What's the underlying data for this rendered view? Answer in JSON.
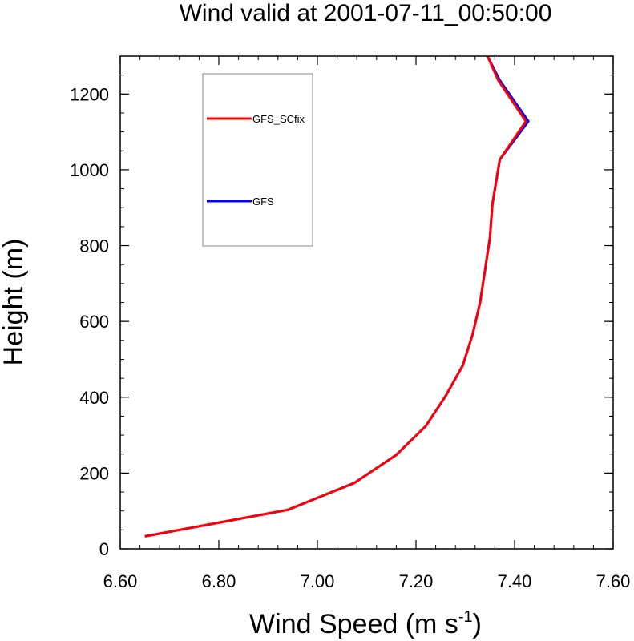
{
  "chart_data": {
    "type": "line",
    "title": "Wind valid at 2001-07-11_00:50:00",
    "xlabel": "Wind Speed (m s",
    "xlabel_sup": "-1",
    "xlabel_end": ")",
    "ylabel": "Height (m)",
    "xlim": [
      6.6,
      7.6
    ],
    "ylim": [
      0,
      1300
    ],
    "xticks": [
      6.6,
      6.8,
      7.0,
      7.2,
      7.4,
      7.6
    ],
    "xtick_labels": [
      "6.60",
      "6.80",
      "7.00",
      "7.20",
      "7.40",
      "7.60"
    ],
    "yticks": [
      0,
      200,
      400,
      600,
      800,
      1000,
      1200
    ],
    "ytick_labels": [
      "0",
      "200",
      "400",
      "600",
      "800",
      "1000",
      "1200"
    ],
    "grid": false,
    "legend_position": "top-left",
    "series": [
      {
        "name": "GFS",
        "color": "#0000ff",
        "points": [
          [
            6.65,
            33
          ],
          [
            6.94,
            103
          ],
          [
            7.075,
            174
          ],
          [
            7.16,
            248
          ],
          [
            7.22,
            324
          ],
          [
            7.26,
            403
          ],
          [
            7.295,
            484
          ],
          [
            7.315,
            566
          ],
          [
            7.33,
            650
          ],
          [
            7.34,
            735
          ],
          [
            7.35,
            822
          ],
          [
            7.355,
            909
          ],
          [
            7.37,
            1027
          ],
          [
            7.428,
            1128
          ],
          [
            7.37,
            1236
          ],
          [
            7.345,
            1300
          ]
        ]
      },
      {
        "name": "GFS_SCfix",
        "color": "#ff0000",
        "points": [
          [
            6.65,
            33
          ],
          [
            6.94,
            103
          ],
          [
            7.075,
            174
          ],
          [
            7.16,
            248
          ],
          [
            7.22,
            324
          ],
          [
            7.26,
            403
          ],
          [
            7.295,
            484
          ],
          [
            7.315,
            566
          ],
          [
            7.33,
            650
          ],
          [
            7.34,
            735
          ],
          [
            7.35,
            822
          ],
          [
            7.355,
            909
          ],
          [
            7.37,
            1027
          ],
          [
            7.423,
            1128
          ],
          [
            7.367,
            1236
          ],
          [
            7.345,
            1300
          ]
        ]
      }
    ]
  }
}
